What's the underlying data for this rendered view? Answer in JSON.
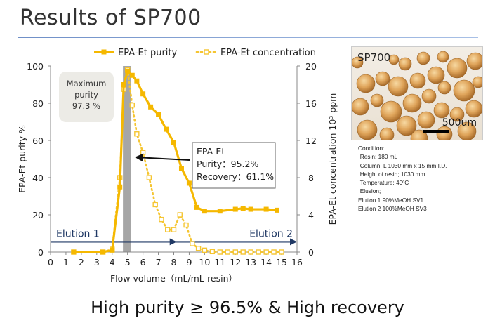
{
  "page_title": "Results of SP700",
  "bottom_text": "High purity ≥ 96.5% & High recovery",
  "photo": {
    "label": "SP700",
    "scale_label": "500um"
  },
  "conditions": [
    "Condition:",
    "·Resin; 180 mL",
    "·Column; L 1030 mm x 15 mm I.D.",
    "·Height of resin; 1030 mm",
    "·Temperature; 40ºC",
    "·Elusion;",
    "Elution 1 90%MeOH SV1",
    "Elution 2 100%MeOH SV3"
  ],
  "colors": {
    "purity": "#f5b800",
    "concentration": "#f5c531",
    "band": "#a6a6a6",
    "arrow": "#1f3864",
    "bubble": "#ecebe6"
  },
  "chart_data": {
    "type": "line",
    "xlabel": "Flow volume（mL/mL-resin）",
    "ylabel": "EPA-Et purity %",
    "y2label": "EPA-Et concentration 10³ ppm",
    "xlim": [
      0,
      16
    ],
    "ylim": [
      0,
      100
    ],
    "y2lim": [
      0,
      20
    ],
    "x_ticks": [
      "0",
      "1",
      "2",
      "3",
      "4",
      "5",
      "6",
      "7",
      "8",
      "9",
      "10",
      "11",
      "12",
      "13",
      "14",
      "15",
      "16"
    ],
    "y_ticks": [
      "0",
      "20",
      "40",
      "60",
      "80",
      "100"
    ],
    "y2_ticks": [
      "0",
      "4",
      "8",
      "12",
      "16",
      "20"
    ],
    "grid": false,
    "legend_position": "top",
    "series": [
      {
        "name": "EPA-Et purity",
        "axis": "left",
        "x": [
          1.5,
          3.4,
          4.0,
          4.5,
          4.75,
          5.0,
          5.3,
          5.6,
          6.0,
          6.5,
          7.0,
          7.5,
          8.0,
          8.5,
          9.0,
          9.5,
          10.0,
          11.0,
          12.0,
          12.5,
          13.0,
          14.0,
          14.7
        ],
        "y": [
          0,
          0,
          1,
          35,
          90,
          97.3,
          95,
          92,
          85,
          78,
          74,
          66,
          59,
          45,
          37,
          24,
          22,
          22,
          23,
          23.5,
          23,
          23,
          22.5
        ]
      },
      {
        "name": "EPA-Et concentration",
        "axis": "right",
        "x": [
          1.5,
          3.4,
          4.0,
          4.5,
          4.75,
          5.0,
          5.3,
          5.6,
          6.0,
          6.4,
          6.8,
          7.2,
          7.6,
          8.0,
          8.4,
          8.8,
          9.2,
          9.6,
          10.0,
          10.5,
          11.0,
          11.5,
          12.0,
          12.5,
          13.0,
          13.5,
          14.0,
          14.5,
          15.0
        ],
        "y": [
          0,
          0,
          0.3,
          8,
          17.5,
          19.6,
          15.8,
          12.7,
          10.7,
          8,
          5.1,
          3.5,
          2.4,
          2.4,
          4,
          2.9,
          0.9,
          0.4,
          0.2,
          0.05,
          0,
          0,
          0,
          0,
          0,
          0,
          0,
          0,
          0
        ]
      }
    ],
    "annotations": {
      "max_purity": "Maximum\npurity\n97.3 %",
      "callout": [
        "EPA-Et",
        "Purity：95.2%",
        "Recovery：61.1%"
      ],
      "elution1": "Elution 1",
      "elution2": "Elution 2",
      "band_x": [
        4.7,
        5.2
      ]
    }
  }
}
